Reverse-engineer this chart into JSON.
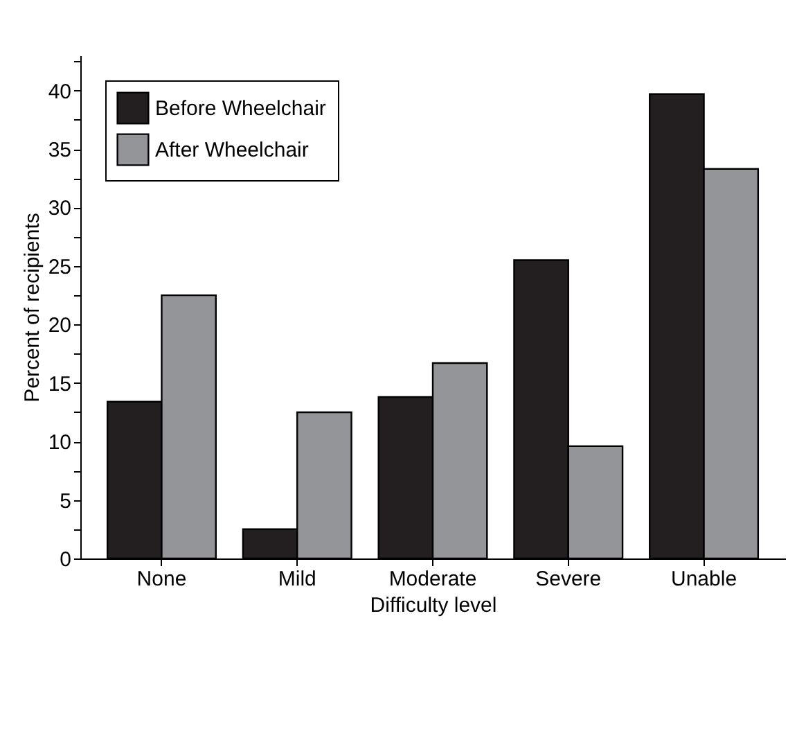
{
  "chart_data": {
    "type": "bar",
    "xlabel": "Difficulty level",
    "ylabel": "Percent of recipients",
    "categories": [
      "None",
      "Mild",
      "Moderate",
      "Severe",
      "Unable"
    ],
    "series": [
      {
        "name": "Before Wheelchair",
        "color": "#231f20",
        "values": [
          13.4,
          2.5,
          13.8,
          25.5,
          39.7
        ]
      },
      {
        "name": "After Wheelchair",
        "color": "#939598",
        "values": [
          22.5,
          12.5,
          16.7,
          9.6,
          33.3
        ]
      }
    ],
    "ylim": [
      0,
      43
    ],
    "yticks": [
      0,
      {
        "value": 2.5,
        "label": null
      },
      5,
      {
        "value": 7.5,
        "label": null
      },
      10,
      {
        "value": 12.5,
        "label": null
      },
      15,
      {
        "value": 17.5,
        "label": null
      },
      20,
      {
        "value": 22.5,
        "label": null
      },
      25,
      {
        "value": 27.5,
        "label": null
      },
      30,
      {
        "value": 32.5,
        "label": null
      },
      35,
      {
        "value": 37.5,
        "label": null
      },
      40,
      {
        "value": 42.5,
        "label": null
      }
    ],
    "grid": false,
    "legend": "top left"
  }
}
